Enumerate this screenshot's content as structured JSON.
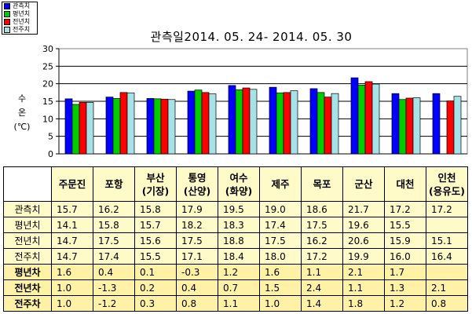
{
  "chart_data": {
    "type": "bar",
    "title": "관측일2014. 05. 24-  2014. 05. 30",
    "ylabel": [
      "수",
      "온",
      "(℃)"
    ],
    "ylim": [
      0,
      30
    ],
    "yticks": [
      0,
      5,
      10,
      15,
      20,
      25,
      30
    ],
    "grid": true,
    "legend_position": "top-left",
    "categories": [
      [
        "주문진"
      ],
      [
        "포항"
      ],
      [
        "부산",
        "(기장)"
      ],
      [
        "통영",
        "(산양)"
      ],
      [
        "여수",
        "(화양)"
      ],
      [
        "제주"
      ],
      [
        "목포"
      ],
      [
        "군산"
      ],
      [
        "대천"
      ],
      [
        "인천",
        "(용유도)"
      ]
    ],
    "series": [
      {
        "name": "관측치",
        "color": "#0000ff",
        "values": [
          15.7,
          16.2,
          15.8,
          17.9,
          19.5,
          19.0,
          18.6,
          21.7,
          17.2,
          17.2
        ]
      },
      {
        "name": "평년치",
        "color": "#00cc00",
        "values": [
          14.1,
          15.8,
          15.7,
          18.2,
          18.3,
          17.4,
          17.5,
          19.6,
          15.5,
          null
        ]
      },
      {
        "name": "전년치",
        "color": "#ff0000",
        "values": [
          14.7,
          17.5,
          15.6,
          17.5,
          18.8,
          17.5,
          16.2,
          20.6,
          15.9,
          15.1
        ]
      },
      {
        "name": "전주치",
        "color": "#a6e3e8",
        "values": [
          14.7,
          17.4,
          15.5,
          17.1,
          18.4,
          18.0,
          17.2,
          19.9,
          16.0,
          16.4
        ]
      }
    ],
    "differences": [
      {
        "name": "평년차",
        "values": [
          "1.6",
          "0.4",
          "0.1",
          "-0.3",
          "1.2",
          "1.6",
          "1.1",
          "2.1",
          "1.7",
          ""
        ]
      },
      {
        "name": "전년차",
        "values": [
          "1.0",
          "-1.3",
          "0.2",
          "0.4",
          "0.7",
          "1.5",
          "2.4",
          "1.1",
          "1.3",
          "2.1"
        ]
      },
      {
        "name": "전주차",
        "values": [
          "1.0",
          "-1.2",
          "0.3",
          "0.8",
          "1.1",
          "1.0",
          "1.4",
          "1.8",
          "1.2",
          "0.8"
        ]
      }
    ]
  }
}
